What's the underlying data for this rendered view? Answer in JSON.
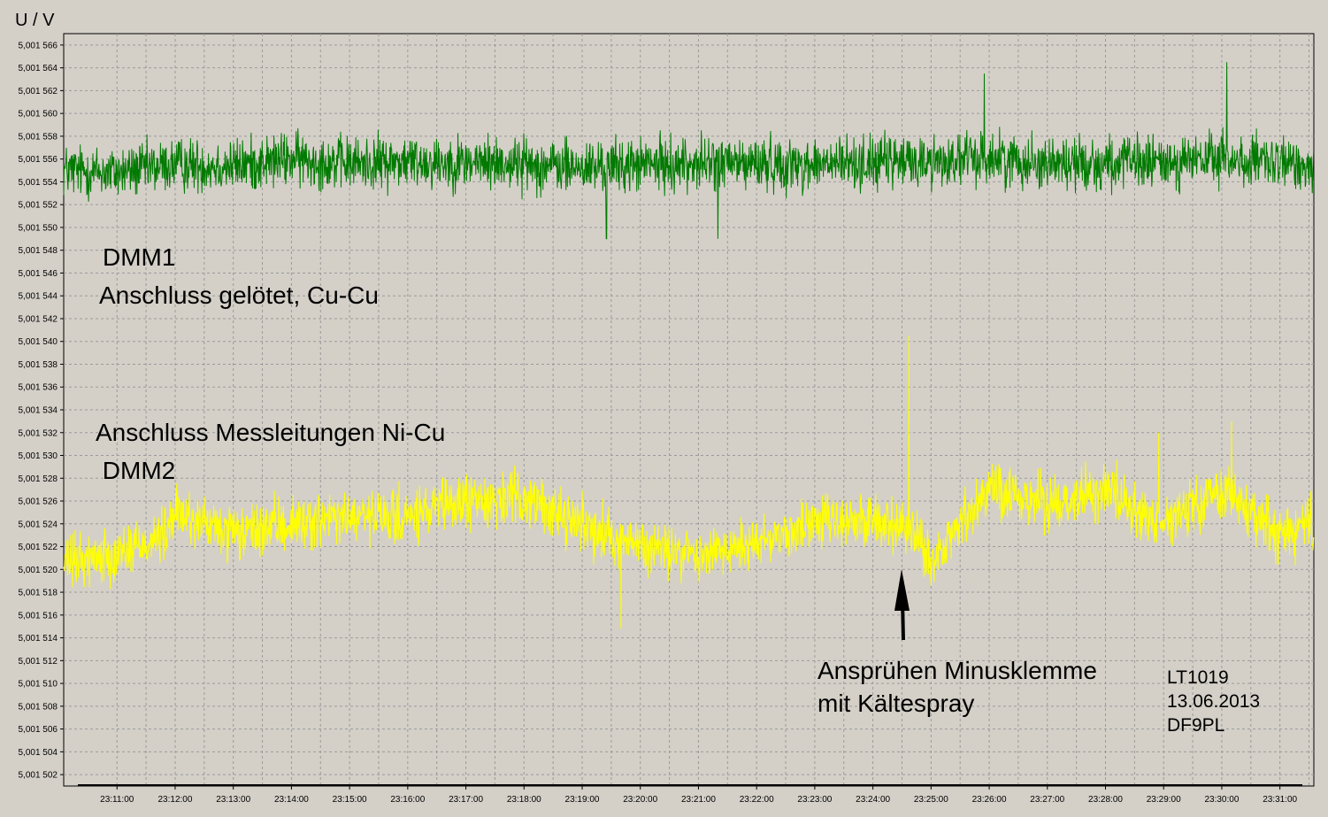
{
  "chart_data": {
    "type": "line",
    "title": "",
    "xlabel": "",
    "ylabel": "U / V",
    "y_ticks": [
      "5,001 502",
      "5,001 504",
      "5,001 506",
      "5,001 508",
      "5,001 510",
      "5,001 512",
      "5,001 514",
      "5,001 516",
      "5,001 518",
      "5,001 520",
      "5,001 522",
      "5,001 524",
      "5,001 526",
      "5,001 528",
      "5,001 530",
      "5,001 532",
      "5,001 534",
      "5,001 536",
      "5,001 538",
      "5,001 540",
      "5,001 542",
      "5,001 544",
      "5,001 546",
      "5,001 548",
      "5,001 550",
      "5,001 552",
      "5,001 554",
      "5,001 556",
      "5,001 558",
      "5,001 560",
      "5,001 562",
      "5,001 564",
      "5,001 566"
    ],
    "ylim": [
      5.001501,
      5.001567
    ],
    "x_ticks": [
      "23:11:00",
      "23:12:00",
      "23:13:00",
      "23:14:00",
      "23:15:00",
      "23:16:00",
      "23:17:00",
      "23:18:00",
      "23:19:00",
      "23:20:00",
      "23:21:00",
      "23:22:00",
      "23:23:00",
      "23:24:00",
      "23:25:00",
      "23:26:00",
      "23:27:00",
      "23:28:00",
      "23:29:00",
      "23:30:00",
      "23:31:00"
    ],
    "xlim": [
      "23:10:05",
      "23:31:35"
    ],
    "grid": true,
    "series": [
      {
        "name": "DMM1",
        "color": "#007a00",
        "mean_points": [
          {
            "t": "23:10:05",
            "v": 5.001555
          },
          {
            "t": "23:11:00",
            "v": 5.0015548
          },
          {
            "t": "23:12:00",
            "v": 5.0015555
          },
          {
            "t": "23:13:00",
            "v": 5.0015554
          },
          {
            "t": "23:14:00",
            "v": 5.001556
          },
          {
            "t": "23:15:00",
            "v": 5.0015556
          },
          {
            "t": "23:16:00",
            "v": 5.0015558
          },
          {
            "t": "23:17:00",
            "v": 5.0015557
          },
          {
            "t": "23:18:00",
            "v": 5.0015556
          },
          {
            "t": "23:19:00",
            "v": 5.0015552
          },
          {
            "t": "23:20:00",
            "v": 5.0015555
          },
          {
            "t": "23:21:00",
            "v": 5.0015556
          },
          {
            "t": "23:22:00",
            "v": 5.0015556
          },
          {
            "t": "23:23:00",
            "v": 5.0015555
          },
          {
            "t": "23:24:00",
            "v": 5.0015557
          },
          {
            "t": "23:25:00",
            "v": 5.0015558
          },
          {
            "t": "23:26:00",
            "v": 5.0015561
          },
          {
            "t": "23:27:00",
            "v": 5.0015557
          },
          {
            "t": "23:28:00",
            "v": 5.0015556
          },
          {
            "t": "23:29:00",
            "v": 5.0015557
          },
          {
            "t": "23:30:00",
            "v": 5.001556
          },
          {
            "t": "23:31:00",
            "v": 5.0015555
          },
          {
            "t": "23:31:35",
            "v": 5.0015556
          }
        ],
        "noise": 1.8e-06,
        "spikes": [
          {
            "t": "23:25:55",
            "v": 5.0015635
          },
          {
            "t": "23:30:05",
            "v": 5.0015645
          },
          {
            "t": "23:19:25",
            "v": 5.001549
          },
          {
            "t": "23:21:20",
            "v": 5.001549
          }
        ]
      },
      {
        "name": "DMM2",
        "color": "#ffff00",
        "mean_points": [
          {
            "t": "23:10:05",
            "v": 5.0015205
          },
          {
            "t": "23:11:00",
            "v": 5.0015215
          },
          {
            "t": "23:11:50",
            "v": 5.001523
          },
          {
            "t": "23:12:00",
            "v": 5.001525
          },
          {
            "t": "23:13:00",
            "v": 5.001523
          },
          {
            "t": "23:14:00",
            "v": 5.001524
          },
          {
            "t": "23:15:00",
            "v": 5.0015245
          },
          {
            "t": "23:16:00",
            "v": 5.0015245
          },
          {
            "t": "23:17:00",
            "v": 5.001526
          },
          {
            "t": "23:18:00",
            "v": 5.0015262
          },
          {
            "t": "23:19:00",
            "v": 5.001524
          },
          {
            "t": "23:20:00",
            "v": 5.001522
          },
          {
            "t": "23:21:00",
            "v": 5.0015212
          },
          {
            "t": "23:22:00",
            "v": 5.0015225
          },
          {
            "t": "23:23:00",
            "v": 5.001524
          },
          {
            "t": "23:24:00",
            "v": 5.0015245
          },
          {
            "t": "23:24:45",
            "v": 5.0015228
          },
          {
            "t": "23:25:00",
            "v": 5.0015205
          },
          {
            "t": "23:25:30",
            "v": 5.001524
          },
          {
            "t": "23:26:00",
            "v": 5.001527
          },
          {
            "t": "23:27:00",
            "v": 5.0015258
          },
          {
            "t": "23:28:00",
            "v": 5.001527
          },
          {
            "t": "23:29:00",
            "v": 5.001524
          },
          {
            "t": "23:30:00",
            "v": 5.001527
          },
          {
            "t": "23:31:00",
            "v": 5.001523
          },
          {
            "t": "23:31:35",
            "v": 5.001524
          }
        ],
        "noise": 1.8e-06,
        "spikes": [
          {
            "t": "23:24:37",
            "v": 5.0015405
          },
          {
            "t": "23:19:40",
            "v": 5.0015148
          },
          {
            "t": "23:30:10",
            "v": 5.001533
          },
          {
            "t": "23:28:55",
            "v": 5.001532
          }
        ]
      }
    ],
    "annotations": [
      {
        "lines": [
          "DMM1",
          "Anschluss gelötet, Cu-Cu"
        ]
      },
      {
        "lines": [
          "Anschluss Messleitungen Ni-Cu",
          " DMM2"
        ]
      },
      {
        "lines": [
          "Ansprühen Minusklemme",
          "mit Kältespray"
        ],
        "arrow_target": {
          "t": "23:24:38",
          "v": 5.0015195
        }
      },
      {
        "lines": [
          "LT1019",
          "13.06.2013",
          "DF9PL"
        ]
      }
    ]
  }
}
